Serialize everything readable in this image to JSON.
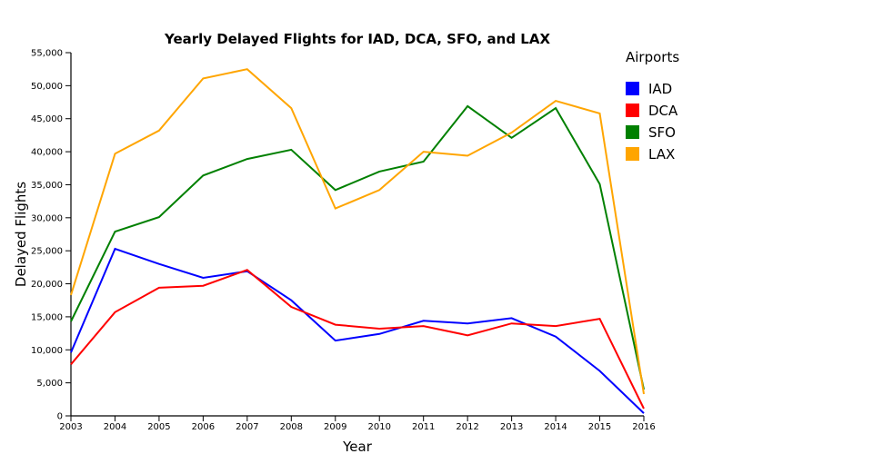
{
  "chart_data": {
    "type": "line",
    "title": "Yearly Delayed Flights for IAD, DCA, SFO, and LAX",
    "xlabel": "Year",
    "ylabel": "Delayed Flights",
    "x": [
      2003,
      2004,
      2005,
      2006,
      2007,
      2008,
      2009,
      2010,
      2011,
      2012,
      2013,
      2014,
      2015,
      2016
    ],
    "xlim": [
      2003,
      2016
    ],
    "ylim": [
      0,
      55000
    ],
    "yticks": [
      0,
      5000,
      10000,
      15000,
      20000,
      25000,
      30000,
      35000,
      40000,
      45000,
      50000,
      55000
    ],
    "ytick_labels": [
      "0",
      "5,000",
      "10,000",
      "15,000",
      "20,000",
      "25,000",
      "30,000",
      "35,000",
      "40,000",
      "45,000",
      "50,000",
      "55,000"
    ],
    "xtick_labels": [
      "2003",
      "2004",
      "2005",
      "2006",
      "2007",
      "2008",
      "2009",
      "2010",
      "2011",
      "2012",
      "2013",
      "2014",
      "2015",
      "2016"
    ],
    "grid": false,
    "legend": {
      "title": "Airports",
      "placement": "top-right"
    },
    "series": [
      {
        "name": "IAD",
        "color": "#0000ff",
        "values": [
          9600,
          25300,
          23000,
          20900,
          21900,
          17500,
          11400,
          12400,
          14400,
          14000,
          14800,
          12000,
          6800,
          400
        ]
      },
      {
        "name": "DCA",
        "color": "#ff0000",
        "values": [
          7800,
          15700,
          19400,
          19700,
          22100,
          16500,
          13800,
          13200,
          13600,
          12200,
          14000,
          13600,
          14700,
          1100
        ]
      },
      {
        "name": "SFO",
        "color": "#008000",
        "values": [
          14300,
          27900,
          30100,
          36400,
          38900,
          40300,
          34200,
          37000,
          38500,
          46900,
          42100,
          46600,
          35100,
          4000
        ]
      },
      {
        "name": "LAX",
        "color": "#ffa500",
        "values": [
          18300,
          39700,
          43200,
          51100,
          52500,
          46600,
          31400,
          34200,
          40000,
          39400,
          42900,
          47700,
          45800,
          3300
        ]
      }
    ]
  }
}
